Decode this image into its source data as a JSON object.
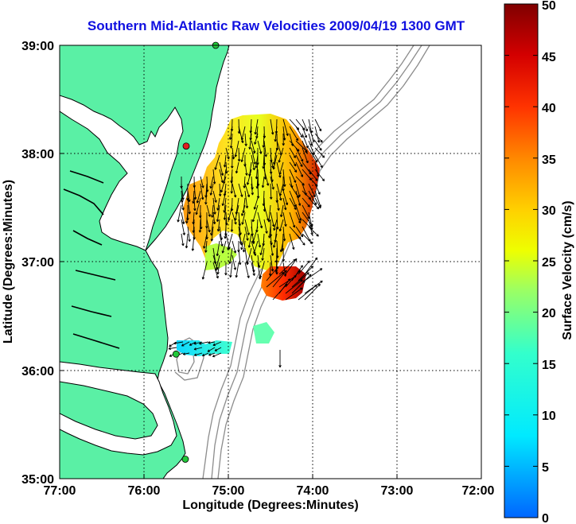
{
  "title": "Southern Mid-Atlantic Raw Velocities 2009/04/19 1300 GMT",
  "xlabel": "Longitude (Degrees:Minutes)",
  "ylabel": "Latitude (Degrees:Minutes)",
  "colorbar_label": "Surface Velocity (cm/s)",
  "x_ticks": [
    "77:00",
    "76:00",
    "75:00",
    "74:00",
    "73:00",
    "72:00"
  ],
  "y_ticks": [
    "39:00",
    "38:00",
    "37:00",
    "36:00",
    "35:00"
  ],
  "colorbar_ticks": [
    "50",
    "45",
    "40",
    "35",
    "30",
    "25",
    "20",
    "15",
    "10",
    "5",
    "0"
  ],
  "colors": {
    "land": "#5af0a5",
    "title": "#1010e0",
    "contour": "#8c8c8c",
    "arrow": "#000000"
  },
  "stations": [
    {
      "name": "station",
      "lon": -75.15,
      "lat": 39.0,
      "color": "#22c83a"
    },
    {
      "name": "station",
      "lon": -75.5,
      "lat": 38.07,
      "color": "#e02020"
    },
    {
      "name": "station",
      "lon": -75.62,
      "lat": 36.15,
      "color": "#22c83a"
    },
    {
      "name": "station",
      "lon": -75.51,
      "lat": 35.18,
      "color": "#22c83a"
    }
  ]
}
